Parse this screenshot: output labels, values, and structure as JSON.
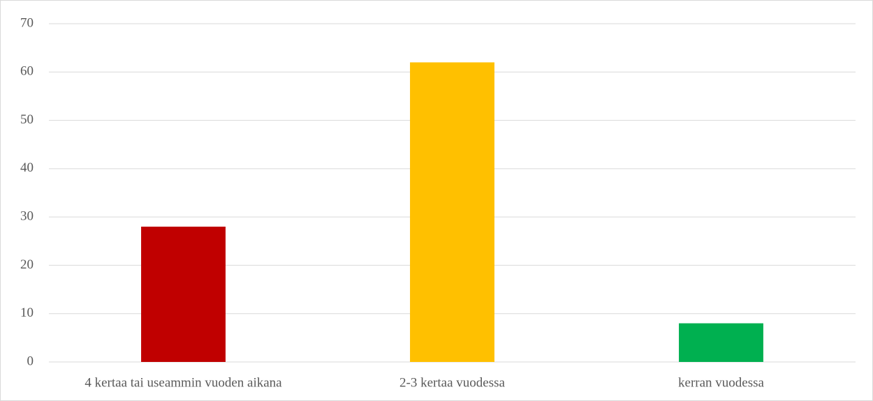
{
  "chart_data": {
    "type": "bar",
    "categories": [
      "4 kertaa tai useammin vuoden aikana",
      "2-3 kertaa vuodessa",
      "kerran vuodessa"
    ],
    "values": [
      28,
      62,
      8
    ],
    "colors": [
      "#c00000",
      "#ffc000",
      "#00b050"
    ],
    "ylim": [
      0,
      70
    ],
    "yticks": [
      0,
      10,
      20,
      30,
      40,
      50,
      60,
      70
    ],
    "grid": true
  }
}
